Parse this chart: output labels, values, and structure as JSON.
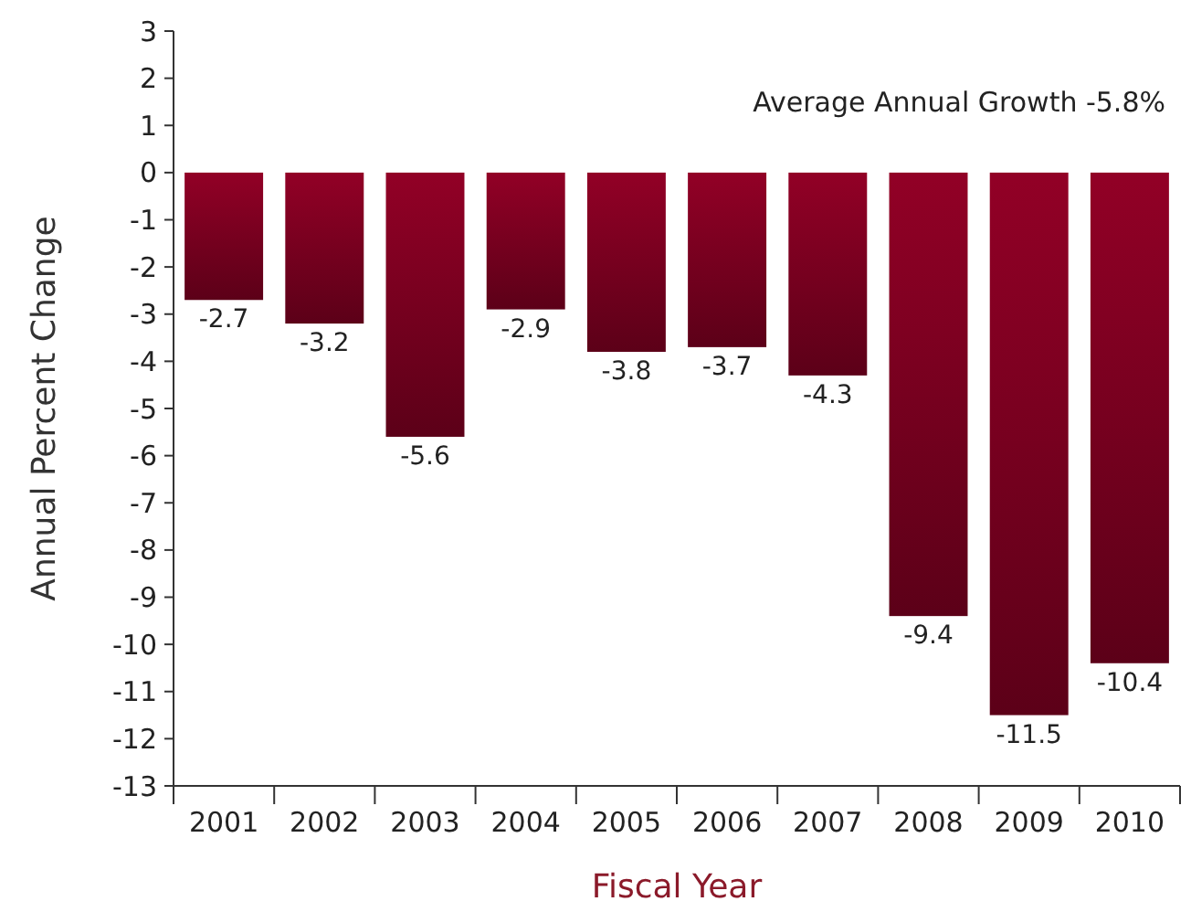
{
  "chart_data": {
    "type": "bar",
    "xlabel": "Fiscal Year",
    "ylabel": "Annual Percent Change",
    "categories": [
      "2001",
      "2002",
      "2003",
      "2004",
      "2005",
      "2006",
      "2007",
      "2008",
      "2009",
      "2010"
    ],
    "values": [
      -2.7,
      -3.2,
      -5.6,
      -2.9,
      -3.8,
      -3.7,
      -4.3,
      -9.4,
      -11.5,
      -10.4
    ],
    "color": "#7a0020",
    "data_labels": true,
    "ylim": [
      -13,
      3
    ],
    "yticks": [
      -13,
      -12,
      -11,
      -10,
      -9,
      -8,
      -7,
      -6,
      -5,
      -4,
      -3,
      -2,
      -1,
      0,
      1,
      2,
      3
    ],
    "annotations": [
      "Average Annual Growth -5.8%"
    ],
    "grid": false
  }
}
